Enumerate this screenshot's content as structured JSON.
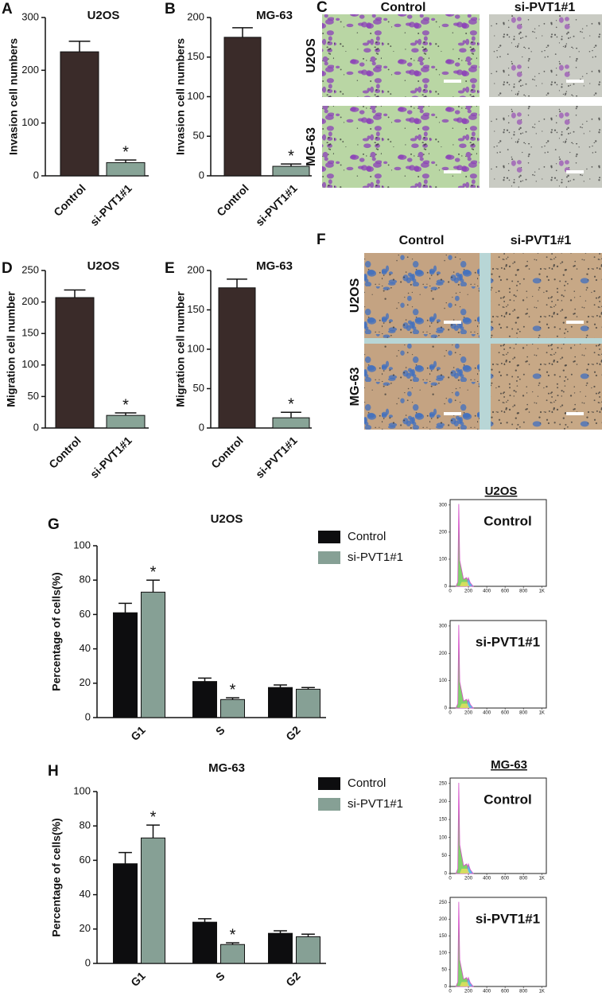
{
  "chart_data": [
    {
      "type": "bar",
      "panel": "A",
      "title": "U2OS",
      "y_label": "Invasion cell numbers",
      "categories": [
        "Control",
        "si-PVT1#1"
      ],
      "values": [
        235,
        25
      ],
      "errors": [
        20,
        5
      ],
      "significance": [
        null,
        "*"
      ],
      "colors": [
        "#3a2b29",
        "#88a497"
      ],
      "ylim": [
        0,
        300
      ],
      "yticks": [
        0,
        100,
        200,
        300
      ]
    },
    {
      "type": "bar",
      "panel": "B",
      "title": "MG-63",
      "y_label": "Invasion cell numbers",
      "categories": [
        "Control",
        "si-PVT1#1"
      ],
      "values": [
        175,
        12
      ],
      "errors": [
        12,
        3
      ],
      "significance": [
        null,
        "*"
      ],
      "colors": [
        "#3a2b29",
        "#88a497"
      ],
      "ylim": [
        0,
        200
      ],
      "yticks": [
        0,
        50,
        100,
        150,
        200
      ]
    },
    {
      "type": "bar",
      "panel": "D",
      "title": "U2OS",
      "y_label": "Migration cell number",
      "categories": [
        "Control",
        "si-PVT1#1"
      ],
      "values": [
        207,
        20
      ],
      "errors": [
        12,
        4
      ],
      "significance": [
        null,
        "*"
      ],
      "colors": [
        "#3a2b29",
        "#88a497"
      ],
      "ylim": [
        0,
        250
      ],
      "yticks": [
        0,
        50,
        100,
        150,
        200,
        250
      ]
    },
    {
      "type": "bar",
      "panel": "E",
      "title": "MG-63",
      "y_label": "Migration cell number",
      "categories": [
        "Control",
        "si-PVT1#1"
      ],
      "values": [
        178,
        13
      ],
      "errors": [
        11,
        7
      ],
      "significance": [
        null,
        "*"
      ],
      "colors": [
        "#3a2b29",
        "#88a497"
      ],
      "ylim": [
        0,
        200
      ],
      "yticks": [
        0,
        50,
        100,
        150,
        200
      ]
    },
    {
      "type": "bar",
      "panel": "G",
      "title": "U2OS",
      "y_label": "Percentage of cells(%)",
      "categories": [
        "G1",
        "S",
        "G2"
      ],
      "series": [
        {
          "name": "Control",
          "color": "#0d0d0f",
          "values": [
            61,
            21,
            17.5
          ],
          "errors": [
            5.5,
            2,
            1.5
          ],
          "significance": [
            null,
            null,
            null
          ]
        },
        {
          "name": "si-PVT1#1",
          "color": "#86a095",
          "values": [
            73,
            10.5,
            16.5
          ],
          "errors": [
            7,
            1,
            1
          ],
          "significance": [
            "*",
            "*",
            null
          ]
        }
      ],
      "ylim": [
        0,
        100
      ],
      "yticks": [
        0,
        20,
        40,
        60,
        80,
        100
      ]
    },
    {
      "type": "bar",
      "panel": "H",
      "title": "MG-63",
      "y_label": "Percentage of cells(%)",
      "categories": [
        "G1",
        "S",
        "G2"
      ],
      "series": [
        {
          "name": "Control",
          "color": "#0d0d0f",
          "values": [
            58,
            24,
            17.5
          ],
          "errors": [
            6.5,
            2,
            1.5
          ],
          "significance": [
            null,
            null,
            null
          ]
        },
        {
          "name": "si-PVT1#1",
          "color": "#86a095",
          "values": [
            73,
            11,
            15.5
          ],
          "errors": [
            7.5,
            1,
            1.5
          ],
          "significance": [
            "*",
            "*",
            null
          ]
        }
      ],
      "ylim": [
        0,
        100
      ],
      "yticks": [
        0,
        20,
        40,
        60,
        80,
        100
      ]
    }
  ],
  "micrograph_panels": [
    {
      "panel": "C",
      "columns": [
        "Control",
        "si-PVT1#1"
      ],
      "rows": [
        "U2OS",
        "MG-63"
      ]
    },
    {
      "panel": "F",
      "columns": [
        "Control",
        "si-PVT1#1"
      ],
      "rows": [
        "U2OS",
        "MG-63"
      ]
    }
  ],
  "flow_cytometry": [
    {
      "title": "U2OS",
      "plots": [
        {
          "label": "Control",
          "xlim": [
            0,
            1050
          ],
          "xticks": [
            0,
            200,
            400,
            600,
            800,
            {
              "value": 1000,
              "label": "1K"
            }
          ],
          "ylim": [
            0,
            320
          ],
          "yticks": [
            0,
            100,
            200,
            300
          ]
        },
        {
          "label": "si-PVT1#1",
          "xlim": [
            0,
            1050
          ],
          "xticks": [
            0,
            200,
            400,
            600,
            800,
            {
              "value": 1000,
              "label": "1K"
            }
          ],
          "ylim": [
            0,
            320
          ],
          "yticks": [
            0,
            100,
            200,
            300
          ]
        }
      ]
    },
    {
      "title": "MG-63",
      "plots": [
        {
          "label": "Control",
          "xlim": [
            0,
            1050
          ],
          "xticks": [
            0,
            200,
            400,
            600,
            800,
            {
              "value": 1000,
              "label": "1K"
            }
          ],
          "ylim": [
            0,
            265
          ],
          "yticks": [
            0,
            50,
            100,
            150,
            200,
            250
          ]
        },
        {
          "label": "si-PVT1#1",
          "xlim": [
            0,
            1050
          ],
          "xticks": [
            0,
            200,
            400,
            600,
            800,
            {
              "value": 1000,
              "label": "1K"
            }
          ],
          "ylim": [
            0,
            265
          ],
          "yticks": [
            0,
            50,
            100,
            150,
            200,
            250
          ]
        }
      ]
    }
  ]
}
